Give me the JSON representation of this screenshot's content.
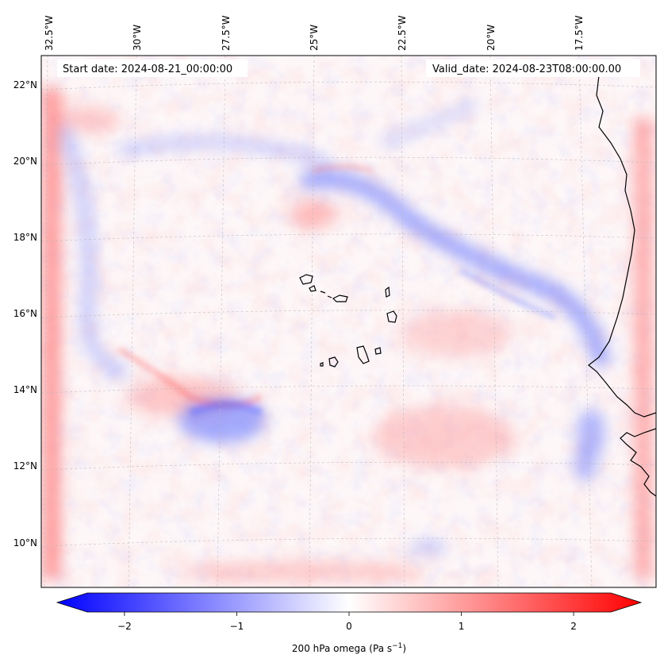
{
  "map": {
    "start_label": "Start date: 2024-08-21_00:00:00",
    "valid_label": "Valid_date: 2024-08-23T08:00:00.00",
    "lon_labels": [
      "32.5°W",
      "30°W",
      "27.5°W",
      "25°W",
      "22.5°W",
      "20°W",
      "17.5°W"
    ],
    "lat_labels": [
      "22°N",
      "20°N",
      "18°N",
      "16°N",
      "14°N",
      "12°N",
      "10°N"
    ],
    "field": "200 hPa omega"
  },
  "colorbar": {
    "label": "200 hPa omega (Pa s",
    "label_exp": "−1",
    "label_close": ")",
    "ticks": [
      {
        "value": -2,
        "label": "−2"
      },
      {
        "value": -1,
        "label": "−1"
      },
      {
        "value": 0,
        "label": "0"
      },
      {
        "value": 1,
        "label": "1"
      },
      {
        "value": 2,
        "label": "2"
      }
    ],
    "range": [
      -2.6,
      2.6
    ],
    "colors": {
      "min": "#0000ff",
      "mid": "#ffffff",
      "max": "#ff0000"
    }
  },
  "colors": {
    "coast": "#000000",
    "grid": "#b4b4b4",
    "frame": "#000000"
  }
}
